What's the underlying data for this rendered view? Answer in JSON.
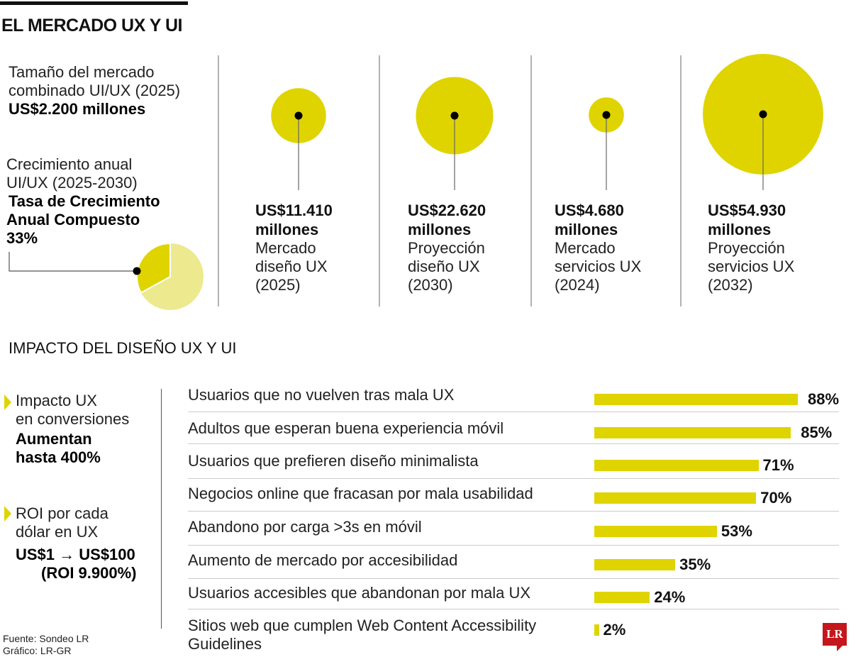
{
  "header": {
    "title": "EL MERCADO UX Y UI"
  },
  "market": {
    "size_label": "Tamaño del mercado combinado UI/UX (2025)",
    "size_label_lines": [
      "Tamaño del mercado",
      "combinado UI/UX (2025)"
    ],
    "size_value": "US$2.200 millones",
    "growth_label_lines": [
      "Crecimiento anual",
      "UI/UX (2025-2030)"
    ],
    "growth_value_lines": [
      "Tasa de Crecimiento",
      "Anual Compuesto",
      "33%"
    ],
    "growth_pct": 33
  },
  "chart_data": [
    {
      "type": "pie",
      "values": [
        33,
        67
      ],
      "colors": [
        "#dfd400",
        "#ede98f"
      ]
    },
    {
      "type": "bubble",
      "values": [
        11410,
        22620,
        4680,
        54930
      ],
      "unit": "US$ millones",
      "items": [
        {
          "value_lines": [
            "US$11.410",
            "millones"
          ],
          "label_lines": [
            "Mercado",
            "diseño UX",
            "(2025)"
          ]
        },
        {
          "value_lines": [
            "US$22.620",
            "millones"
          ],
          "label_lines": [
            "Proyección",
            "diseño UX",
            "(2030)"
          ]
        },
        {
          "value_lines": [
            "US$4.680",
            "millones"
          ],
          "label_lines": [
            "Mercado",
            "servicios UX",
            "(2024)"
          ]
        },
        {
          "value_lines": [
            "US$54.930",
            "millones"
          ],
          "label_lines": [
            "Proyección",
            "servicios UX",
            "(2032)"
          ]
        }
      ],
      "color": "#dfd400"
    },
    {
      "type": "bar",
      "orientation": "horizontal",
      "title": "IMPACTO DEL DISEÑO UX Y UI",
      "categories": [
        "Usuarios que no vuelven tras mala UX",
        "Adultos que esperan buena experiencia móvil",
        "Usuarios que prefieren diseño minimalista",
        "Negocios online que fracasan por mala usabilidad",
        "Abandono por carga >3s en móvil",
        "Aumento de mercado por accesibilidad",
        "Usuarios accesibles que abandonan por mala UX",
        "Sitios web que cumplen Web Content Accessibility Guidelines"
      ],
      "category_lines": [
        [
          "Usuarios que no vuelven tras mala UX"
        ],
        [
          "Adultos que esperan buena experiencia móvil"
        ],
        [
          "Usuarios que prefieren diseño minimalista"
        ],
        [
          "Negocios online que fracasan por mala usabilidad"
        ],
        [
          "Abandono por carga >3s en móvil"
        ],
        [
          "Aumento de mercado por accesibilidad"
        ],
        [
          "Usuarios accesibles que abandonan por mala UX"
        ],
        [
          "Sitios web que cumplen Web Content Accessibility",
          "Guidelines"
        ]
      ],
      "values": [
        88,
        85,
        71,
        70,
        53,
        35,
        24,
        2
      ],
      "data_labels": [
        "88%",
        "85%",
        "71%",
        "70%",
        "53%",
        "35%",
        "24%",
        "2%"
      ],
      "color": "#dfd400"
    }
  ],
  "impact": {
    "section_title": "IMPACTO DEL DISEÑO UX Y UI",
    "conv_label_lines": [
      "Impacto UX",
      "en conversiones"
    ],
    "conv_value_lines": [
      "Aumentan",
      "hasta 400%"
    ],
    "roi_label_lines": [
      "ROI por cada",
      "dólar en UX"
    ],
    "roi_value_lines": [
      "US$1 → US$100",
      "(ROI 9.900%)"
    ]
  },
  "footer": {
    "source": "Fuente: Sondeo LR",
    "graphic": "Gráfico: LR-GR",
    "logo": "LR"
  }
}
